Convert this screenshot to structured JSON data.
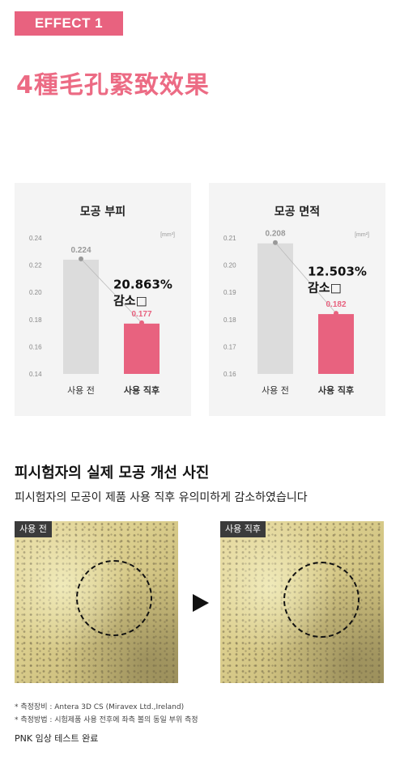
{
  "header": {
    "badge": "EFFECT 1",
    "headline": "4種毛孔緊致效果"
  },
  "chart_data": [
    {
      "type": "bar",
      "title": "모공 부피",
      "unit": "[mm³]",
      "categories": [
        "사용 전",
        "사용 직후"
      ],
      "values": [
        0.224,
        0.177
      ],
      "value_labels": [
        "0.224",
        "0.177"
      ],
      "ylim": [
        0.14,
        0.24
      ],
      "yticks": [
        "0.14",
        "0.16",
        "0.18",
        "0.20",
        "0.22",
        "0.24"
      ],
      "bar_colors": [
        "#dcdcdc",
        "#e8627f"
      ],
      "label_colors": [
        "#999999",
        "#e8627f"
      ],
      "annotation_line1": "20.863%",
      "annotation_line2": "감소□"
    },
    {
      "type": "bar",
      "title": "모공 면적",
      "unit": "[mm²]",
      "categories": [
        "사용 전",
        "사용 직후"
      ],
      "values": [
        0.208,
        0.182
      ],
      "value_labels": [
        "0.208",
        "0.182"
      ],
      "ylim": [
        0.16,
        0.21
      ],
      "yticks": [
        "0.16",
        "0.17",
        "0.18",
        "0.19",
        "0.20",
        "0.21"
      ],
      "bar_colors": [
        "#dcdcdc",
        "#e8627f"
      ],
      "label_colors": [
        "#999999",
        "#e8627f"
      ],
      "annotation_line1": "12.503%",
      "annotation_line2": "감소□"
    }
  ],
  "section": {
    "title": "피시험자의 실제 모공 개선 사진",
    "subtitle": "피시험자의 모공이 제품 사용 직후 유의미하게 감소하였습니다"
  },
  "photos": {
    "before_label": "사용 전",
    "after_label": "사용 직후"
  },
  "footnotes": {
    "line1": "* 측정장비 : Antera 3D CS (Miravex Ltd.,Ireland)",
    "line2": "* 측정방법 : 시험제품 사용 전후에 좌측 볼의 동일 부위 측정",
    "final": "PNK 임상 테스트 완료"
  },
  "colors": {
    "accent": "#e8627f",
    "bar_before": "#dcdcdc",
    "card_bg": "#f4f4f4"
  }
}
